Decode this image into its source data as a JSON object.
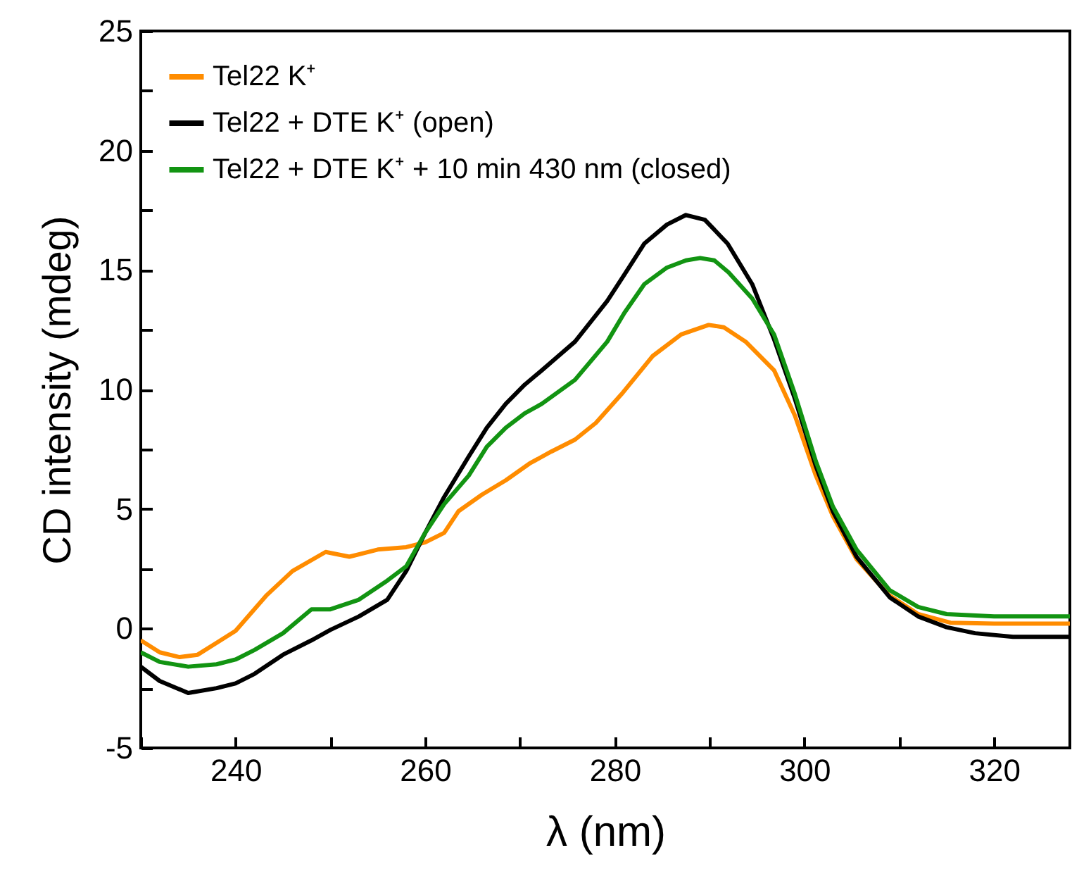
{
  "chart_data": {
    "type": "line",
    "xlabel": "λ (nm)",
    "ylabel": "CD intensity (mdeg)",
    "xlim": [
      230,
      328
    ],
    "ylim": [
      -5,
      25
    ],
    "xticks": [
      {
        "value": 230,
        "label": null
      },
      240,
      {
        "value": 250,
        "label": null
      },
      260,
      {
        "value": 270,
        "label": null
      },
      280,
      {
        "value": 290,
        "label": null
      },
      300,
      {
        "value": 310,
        "label": null
      },
      320
    ],
    "yticks": [
      -5,
      {
        "value": -2.5,
        "label": null
      },
      0,
      {
        "value": 2.5,
        "label": null
      },
      5,
      {
        "value": 7.5,
        "label": null
      },
      10,
      {
        "value": 12.5,
        "label": null
      },
      15,
      {
        "value": 17.5,
        "label": null
      },
      20,
      {
        "value": 22.5,
        "label": null
      },
      25
    ],
    "legend": "top left",
    "line_style": "solid",
    "series": [
      {
        "name": "Tel22 K⁺",
        "color": "#ff8c00",
        "x": [
          230,
          232,
          234.1,
          236,
          238,
          240,
          243.3,
          246,
          249.5,
          252,
          255,
          258,
          260,
          262,
          263.5,
          266,
          268.5,
          271,
          273.3,
          275.8,
          278,
          280.7,
          284,
          287,
          289.9,
          291.5,
          293.8,
          296.8,
          299,
          301.2,
          303,
          305.5,
          308.9,
          312,
          315.4,
          320,
          324,
          328
        ],
        "values": [
          -0.5,
          -1.0,
          -1.2,
          -1.1,
          -0.6,
          -0.1,
          1.4,
          2.4,
          3.2,
          3.0,
          3.3,
          3.4,
          3.6,
          4.0,
          4.9,
          5.6,
          6.2,
          6.9,
          7.4,
          7.9,
          8.6,
          9.8,
          11.4,
          12.3,
          12.7,
          12.6,
          12.0,
          10.8,
          8.9,
          6.4,
          4.7,
          2.9,
          1.4,
          0.6,
          0.24,
          0.2,
          0.2,
          0.2
        ]
      },
      {
        "name": "Tel22 + DTE K⁺ (open)",
        "color": "#000000",
        "x": [
          230,
          232,
          235,
          238,
          240,
          242,
          245,
          248,
          250,
          253,
          256,
          258,
          260,
          262,
          264.6,
          266.5,
          268.5,
          270.5,
          272.3,
          275.8,
          279.2,
          281,
          283.1,
          285.5,
          287.5,
          289.5,
          291.9,
          294.5,
          296.8,
          299,
          301.2,
          303,
          305.5,
          309,
          312,
          315,
          318,
          322,
          328
        ],
        "values": [
          -1.6,
          -2.2,
          -2.7,
          -2.5,
          -2.3,
          -1.9,
          -1.1,
          -0.5,
          -0.06,
          0.5,
          1.2,
          2.4,
          4.0,
          5.5,
          7.2,
          8.4,
          9.4,
          10.2,
          10.8,
          12.0,
          13.7,
          14.8,
          16.1,
          16.9,
          17.3,
          17.1,
          16.1,
          14.4,
          12.1,
          9.6,
          6.8,
          4.9,
          3.0,
          1.3,
          0.5,
          0.05,
          -0.2,
          -0.35,
          -0.35
        ]
      },
      {
        "name": "Tel22 + DTE K⁺ + 10 min 430 nm (closed)",
        "color": "#129412",
        "x": [
          230,
          232,
          235,
          238,
          240,
          242,
          245,
          248,
          250,
          253,
          256,
          258,
          260,
          262,
          264.6,
          266.5,
          268.5,
          270.5,
          272.3,
          275.8,
          279.2,
          281,
          283.1,
          285.5,
          287.5,
          289,
          290.5,
          292,
          294.5,
          296.8,
          299,
          301.2,
          303,
          305.5,
          309,
          312,
          315,
          320,
          328
        ],
        "values": [
          -1.0,
          -1.4,
          -1.6,
          -1.5,
          -1.3,
          -0.9,
          -0.2,
          0.8,
          0.8,
          1.2,
          2.0,
          2.6,
          4.0,
          5.2,
          6.4,
          7.6,
          8.4,
          9.0,
          9.4,
          10.4,
          12.0,
          13.2,
          14.4,
          15.1,
          15.4,
          15.5,
          15.4,
          14.9,
          13.8,
          12.3,
          9.8,
          7.0,
          5.1,
          3.3,
          1.6,
          0.9,
          0.6,
          0.5,
          0.5
        ]
      }
    ]
  }
}
